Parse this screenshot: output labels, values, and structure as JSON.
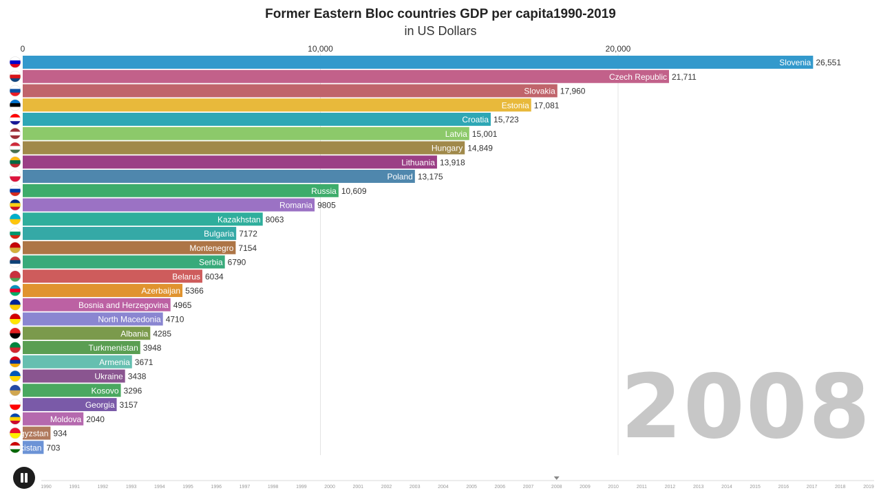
{
  "title": "Former Eastern Bloc countries GDP per capita1990-2019",
  "subtitle": "in US Dollars",
  "year": "2008",
  "controls": {
    "play_state": "paused",
    "current_year": "2008"
  },
  "chart_data": {
    "type": "bar",
    "orientation": "horizontal",
    "title": "Former Eastern Bloc countries GDP per capita1990-2019",
    "subtitle": "in US Dollars",
    "xlim": [
      0,
      30000
    ],
    "x_ticks": [
      0,
      10000,
      20000
    ],
    "x_tick_labels": [
      "0",
      "10,000",
      "20,000"
    ],
    "categories": [
      "Slovenia",
      "Czech Republic",
      "Slovakia",
      "Estonia",
      "Croatia",
      "Latvia",
      "Hungary",
      "Lithuania",
      "Poland",
      "Russia",
      "Romania",
      "Kazakhstan",
      "Bulgaria",
      "Montenegro",
      "Serbia",
      "Belarus",
      "Azerbaijan",
      "Bosnia and Herzegovina",
      "North Macedonia",
      "Albania",
      "Turkmenistan",
      "Armenia",
      "Ukraine",
      "Kosovo",
      "Georgia",
      "Moldova",
      "Kyrgyzstan",
      "Tajikistan"
    ],
    "display_labels": [
      "Slovenia",
      "Czech Republic",
      "Slovakia",
      "Estonia",
      "Croatia",
      "Latvia",
      "Hungary",
      "Lithuania",
      "Poland",
      "Russia",
      "Romania",
      "Kazakhstan",
      "Bulgaria",
      "Montenegro",
      "Serbia",
      "Belarus",
      "Azerbaijan",
      "Bosnia and Herzegovina",
      "North Macedonia",
      "Albania",
      "Turkmenistan",
      "Armenia",
      "Ukraine",
      "Kosovo",
      "Georgia",
      "Moldova",
      "gyzstan",
      "kistan"
    ],
    "values": [
      26551,
      21711,
      17960,
      17081,
      15723,
      15001,
      14849,
      13918,
      13175,
      10609,
      9805,
      8063,
      7172,
      7154,
      6790,
      6034,
      5366,
      4965,
      4710,
      4285,
      3948,
      3671,
      3438,
      3296,
      3157,
      2040,
      934,
      703
    ],
    "value_labels": [
      "26,551",
      "21,711",
      "17,960",
      "17,081",
      "15,723",
      "15,001",
      "14,849",
      "13,918",
      "13,175",
      "10,609",
      "9805",
      "8063",
      "7172",
      "7154",
      "6790",
      "6034",
      "5366",
      "4965",
      "4710",
      "4285",
      "3948",
      "3671",
      "3438",
      "3296",
      "3157",
      "2040",
      "934",
      "703"
    ],
    "colors": [
      "#3399cc",
      "#c2618a",
      "#c0646b",
      "#e8b93b",
      "#2ea7b5",
      "#8cc96a",
      "#a0894a",
      "#9b3f86",
      "#4f87ad",
      "#3dac6b",
      "#9b72c4",
      "#2fae9c",
      "#35a9a6",
      "#ad7546",
      "#38aa7a",
      "#ce5c5c",
      "#e0932f",
      "#bc61a3",
      "#8a86d1",
      "#7b9a4c",
      "#5a9e52",
      "#66bfb0",
      "#8a5590",
      "#4aa860",
      "#7a5aa8",
      "#b569ae",
      "#b0795c",
      "#6c93d6"
    ],
    "flags": [
      [
        "#ffffff",
        "#0000cc",
        "#e2001a"
      ],
      [
        "#ffffff",
        "#d7141a",
        "#11457e"
      ],
      [
        "#ffffff",
        "#0b4ea2",
        "#ee1c25"
      ],
      [
        "#0072ce",
        "#000000",
        "#ffffff"
      ],
      [
        "#ff0000",
        "#ffffff",
        "#171796"
      ],
      [
        "#9e3039",
        "#ffffff",
        "#9e3039"
      ],
      [
        "#ce2939",
        "#ffffff",
        "#477050"
      ],
      [
        "#fdb913",
        "#006a44",
        "#c1272d"
      ],
      [
        "#ffffff",
        "#dc143c"
      ],
      [
        "#ffffff",
        "#0039a6",
        "#d52b1e"
      ],
      [
        "#002b7f",
        "#fcd116",
        "#ce1126"
      ],
      [
        "#00afca",
        "#fec50c"
      ],
      [
        "#ffffff",
        "#00966e",
        "#d62612"
      ],
      [
        "#c40308",
        "#d4af3a"
      ],
      [
        "#c6363c",
        "#0c4076",
        "#ffffff"
      ],
      [
        "#c8313e",
        "#c8313e",
        "#4aa657"
      ],
      [
        "#0092bc",
        "#e4002b",
        "#00af66"
      ],
      [
        "#002395",
        "#fecb00"
      ],
      [
        "#d20000",
        "#ffe600"
      ],
      [
        "#e41e20",
        "#000000"
      ],
      [
        "#00843d",
        "#d22630"
      ],
      [
        "#d90012",
        "#0033a0",
        "#f2a800"
      ],
      [
        "#0057b7",
        "#ffd700"
      ],
      [
        "#244aa5",
        "#d0a650"
      ],
      [
        "#ffffff",
        "#ff0000"
      ],
      [
        "#0046ae",
        "#ffd200",
        "#cc092f"
      ],
      [
        "#e8112d",
        "#ffef00"
      ],
      [
        "#cc0000",
        "#ffffff",
        "#006600"
      ]
    ],
    "timeline_years": [
      "1990",
      "1991",
      "1992",
      "1993",
      "1994",
      "1995",
      "1996",
      "1997",
      "1998",
      "1999",
      "2000",
      "2001",
      "2002",
      "2003",
      "2004",
      "2005",
      "2006",
      "2007",
      "2008",
      "2009",
      "2010",
      "2011",
      "2012",
      "2013",
      "2014",
      "2015",
      "2016",
      "2017",
      "2018",
      "2019"
    ]
  }
}
